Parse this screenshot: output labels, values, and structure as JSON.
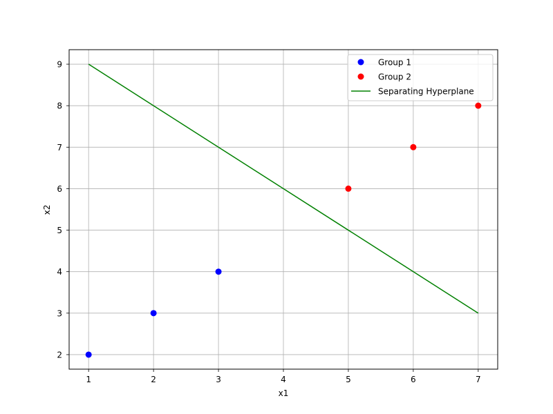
{
  "chart_data": {
    "type": "scatter",
    "title": "",
    "xlabel": "x1",
    "ylabel": "x2",
    "xlim": [
      0.7,
      7.3
    ],
    "ylim": [
      1.65,
      9.35
    ],
    "xticks": [
      1,
      2,
      3,
      4,
      5,
      6,
      7
    ],
    "yticks": [
      2,
      3,
      4,
      5,
      6,
      7,
      8,
      9
    ],
    "grid": true,
    "legend_position": "upper right",
    "series": [
      {
        "name": "Group 1",
        "kind": "scatter",
        "color": "#0000ff",
        "x": [
          1,
          2,
          3
        ],
        "y": [
          2,
          3,
          4
        ]
      },
      {
        "name": "Group 2",
        "kind": "scatter",
        "color": "#ff0000",
        "x": [
          5,
          6,
          7
        ],
        "y": [
          6,
          7,
          8
        ]
      },
      {
        "name": "Separating Hyperplane",
        "kind": "line",
        "color": "#008000",
        "x": [
          1,
          7
        ],
        "y": [
          9,
          3
        ]
      }
    ]
  }
}
